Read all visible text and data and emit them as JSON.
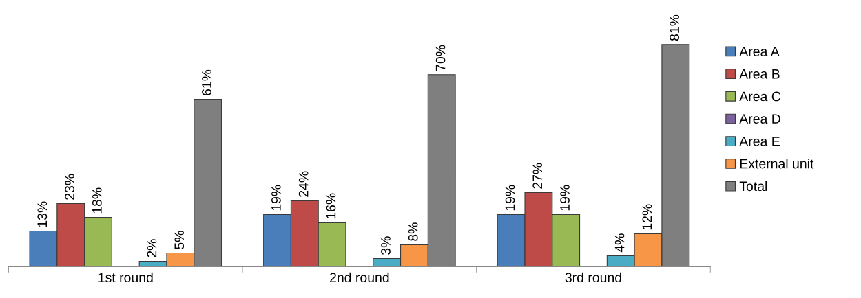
{
  "chart_data": {
    "type": "bar",
    "categories": [
      "1st round",
      "2nd round",
      "3rd round"
    ],
    "series": [
      {
        "name": "Area A",
        "color": "#4a7ebb",
        "values": [
          13,
          19,
          19
        ],
        "value_labels": [
          "13%",
          "19%",
          "19%"
        ]
      },
      {
        "name": "Area B",
        "color": "#be4b48",
        "values": [
          23,
          24,
          27
        ],
        "value_labels": [
          "23%",
          "24%",
          "27%"
        ]
      },
      {
        "name": "Area C",
        "color": "#98b954",
        "values": [
          18,
          16,
          19
        ],
        "value_labels": [
          "18%",
          "16%",
          "19%"
        ]
      },
      {
        "name": "Area D",
        "color": "#7d60a0",
        "values": [
          null,
          null,
          null
        ],
        "value_labels": [
          null,
          null,
          null
        ]
      },
      {
        "name": "Area E",
        "color": "#4bacc6",
        "values": [
          2,
          3,
          4
        ],
        "value_labels": [
          "2%",
          "3%",
          "4%"
        ]
      },
      {
        "name": "External unit",
        "color": "#f79646",
        "values": [
          5,
          8,
          12
        ],
        "value_labels": [
          "5%",
          "8%",
          "12%"
        ]
      },
      {
        "name": "Total",
        "color": "#7f7f7f",
        "values": [
          61,
          70,
          81
        ],
        "value_labels": [
          "61%",
          "70%",
          "81%"
        ]
      }
    ],
    "legend": "right",
    "grid": false
  }
}
